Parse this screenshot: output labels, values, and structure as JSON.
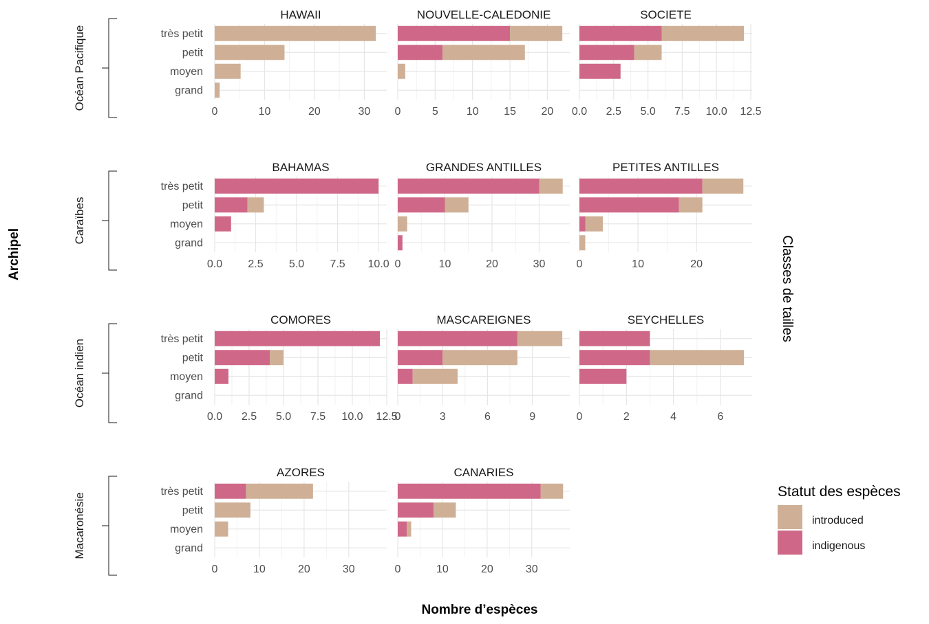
{
  "chart_data": {
    "type": "bar",
    "orientation": "horizontal",
    "stacked": true,
    "xlabel": "Nombre d’espèces",
    "left_label": "Archipel",
    "right_label": "Classes de tailles",
    "legend": {
      "title": "Statut des espèces",
      "placement": "right",
      "entries": [
        {
          "key": "introduced",
          "label": "introduced",
          "color": "#cfb096"
        },
        {
          "key": "indigenous",
          "label": "indigenous",
          "color": "#cf6888"
        }
      ]
    },
    "categories": [
      "très petit",
      "petit",
      "moyen",
      "grand"
    ],
    "grid": true,
    "groups": [
      {
        "name": "Océan Pacifique",
        "facets": [
          {
            "title": "HAWAII",
            "xlim": [
              0,
              34.5
            ],
            "ticks": [
              0,
              10,
              20,
              30
            ],
            "tick_labels": [
              "0",
              "10",
              "20",
              "30"
            ],
            "indigenous": [
              0,
              0,
              0,
              0
            ],
            "introduced": [
              32.3,
              14,
              5.2,
              1
            ]
          },
          {
            "title": "NOUVELLE-CALEDONIE",
            "xlim": [
              0,
              23
            ],
            "ticks": [
              0,
              5,
              10,
              15,
              20
            ],
            "tick_labels": [
              "0",
              "5",
              "10",
              "15",
              "20"
            ],
            "indigenous": [
              15,
              6,
              0,
              0
            ],
            "introduced": [
              7,
              11,
              1,
              0
            ]
          },
          {
            "title": "SOCIETE",
            "xlim": [
              0,
              12.6
            ],
            "ticks": [
              0,
              2.5,
              5,
              7.5,
              10,
              12.5
            ],
            "tick_labels": [
              "0.0",
              "2.5",
              "5.0",
              "7.5",
              "10.0",
              "12.5"
            ],
            "indigenous": [
              6,
              4,
              3,
              0
            ],
            "introduced": [
              6,
              2,
              0,
              0
            ]
          }
        ]
      },
      {
        "name": "Caraïbes",
        "facets": [
          {
            "title": "BAHAMAS",
            "xlim": [
              0,
              10.5
            ],
            "ticks": [
              0,
              2.5,
              5,
              7.5,
              10
            ],
            "tick_labels": [
              "0.0",
              "2.5",
              "5.0",
              "7.5",
              "10.0"
            ],
            "indigenous": [
              10,
              2,
              1,
              0
            ],
            "introduced": [
              0,
              1,
              0,
              0
            ]
          },
          {
            "title": "GRANDES ANTILLES",
            "xlim": [
              0,
              36.5
            ],
            "ticks": [
              0,
              10,
              20,
              30
            ],
            "tick_labels": [
              "0",
              "10",
              "20",
              "30"
            ],
            "indigenous": [
              30,
              10,
              0,
              1
            ],
            "introduced": [
              5,
              5,
              2,
              0
            ]
          },
          {
            "title": "PETITES ANTILLES",
            "xlim": [
              0,
              29.5
            ],
            "ticks": [
              0,
              10,
              20
            ],
            "tick_labels": [
              "0",
              "10",
              "20"
            ],
            "indigenous": [
              21,
              17,
              1,
              0
            ],
            "introduced": [
              7,
              4,
              3,
              1
            ]
          }
        ]
      },
      {
        "name": "Océan indien",
        "facets": [
          {
            "title": "COMORES",
            "xlim": [
              0,
              12.5
            ],
            "ticks": [
              0,
              2.5,
              5,
              7.5,
              10,
              12.5
            ],
            "tick_labels": [
              "0.0",
              "2.5",
              "5.0",
              "7.5",
              "10.0",
              "12.5"
            ],
            "indigenous": [
              12,
              4,
              1,
              0
            ],
            "introduced": [
              0,
              1,
              0,
              0
            ]
          },
          {
            "title": "MASCAREIGNES",
            "xlim": [
              0,
              11.5
            ],
            "ticks": [
              0,
              3,
              6,
              9
            ],
            "tick_labels": [
              "0",
              "3",
              "6",
              "9"
            ],
            "indigenous": [
              8,
              3,
              1,
              0
            ],
            "introduced": [
              3,
              5,
              3,
              0
            ]
          },
          {
            "title": "SEYCHELLES",
            "xlim": [
              0,
              7.35
            ],
            "ticks": [
              0,
              2,
              4,
              6
            ],
            "tick_labels": [
              "0",
              "2",
              "4",
              "6"
            ],
            "indigenous": [
              3,
              3,
              2,
              0
            ],
            "introduced": [
              0,
              4,
              0,
              0
            ]
          }
        ]
      },
      {
        "name": "Macaronésie",
        "facets": [
          {
            "title": "AZORES",
            "xlim": [
              0,
              38.5
            ],
            "ticks": [
              0,
              10,
              20,
              30
            ],
            "tick_labels": [
              "0",
              "10",
              "20",
              "30"
            ],
            "indigenous": [
              7,
              0,
              0,
              0
            ],
            "introduced": [
              15,
              8,
              3,
              0
            ]
          },
          {
            "title": "CANARIES",
            "xlim": [
              0,
              38.5
            ],
            "ticks": [
              0,
              10,
              20,
              30
            ],
            "tick_labels": [
              "0",
              "10",
              "20",
              "30"
            ],
            "indigenous": [
              32,
              8,
              2,
              0
            ],
            "introduced": [
              5,
              5,
              1,
              0
            ]
          }
        ]
      }
    ]
  }
}
